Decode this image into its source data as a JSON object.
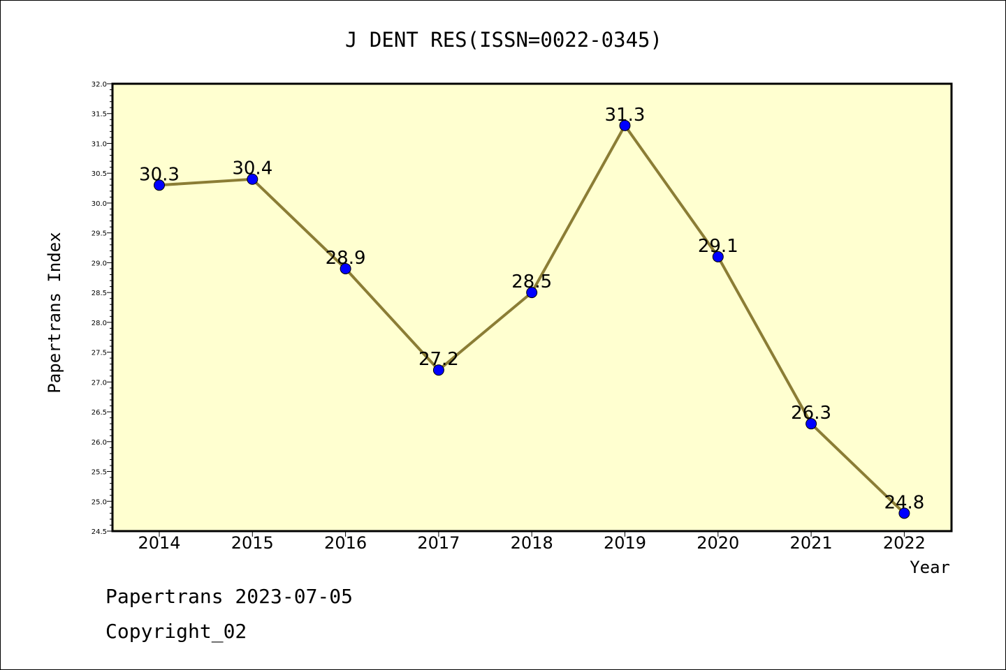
{
  "chart_data": {
    "type": "line",
    "title": "J DENT RES(ISSN=0022-0345)",
    "xlabel": "Year",
    "ylabel": "Papertrans Index",
    "categories": [
      "2014",
      "2015",
      "2016",
      "2017",
      "2018",
      "2019",
      "2020",
      "2021",
      "2022"
    ],
    "series": [
      {
        "values": [
          30.3,
          30.4,
          28.9,
          27.2,
          28.5,
          31.3,
          29.1,
          26.3,
          24.8
        ],
        "data_labels": [
          "30.3",
          "30.4",
          "28.9",
          "27.2",
          "28.5",
          "31.3",
          "29.1",
          "26.3",
          "24.8"
        ]
      }
    ],
    "ylim": [
      24.5,
      32.0
    ],
    "y_ticks": [
      "24.5",
      "25.0",
      "25.5",
      "26.0",
      "26.5",
      "27.0",
      "27.5",
      "28.0",
      "28.5",
      "29.0",
      "29.5",
      "30.0",
      "30.5",
      "31.0",
      "31.5",
      "32.0"
    ],
    "grid": false,
    "legend": "none",
    "colors": {
      "plot_background": "#ffffd0",
      "line": "#8b7d35",
      "marker": "#0000ff"
    }
  },
  "footer": {
    "line1": "Papertrans 2023-07-05",
    "line2": "Copyright_02"
  }
}
